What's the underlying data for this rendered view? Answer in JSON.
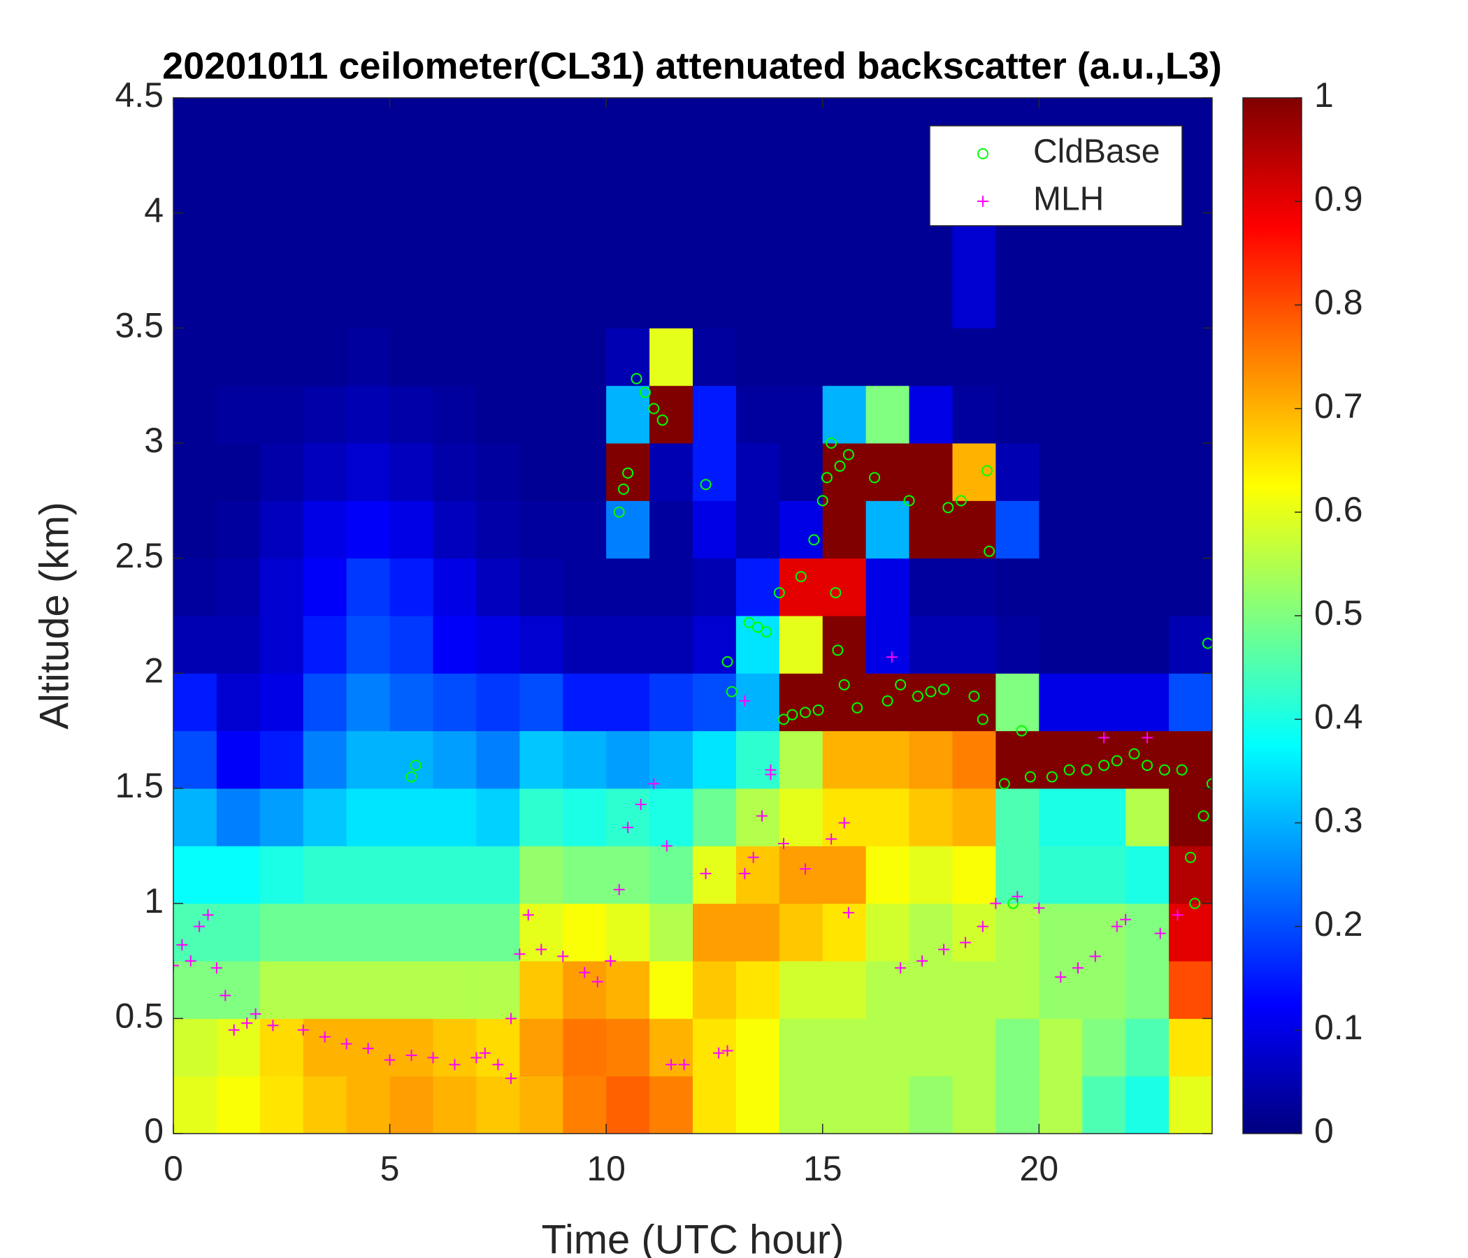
{
  "chart_data": {
    "type": "heatmap",
    "title": "20201011 ceilometer(CL31) attenuated backscatter (a.u.,L3)",
    "xlabel": "Time (UTC hour)",
    "ylabel": "Altitude (km)",
    "xlim": [
      0,
      24
    ],
    "ylim": [
      0,
      4.5
    ],
    "xticks": [
      0,
      5,
      10,
      15,
      20
    ],
    "yticks": [
      0,
      0.5,
      1,
      1.5,
      2,
      2.5,
      3,
      3.5,
      4,
      4.5
    ],
    "clim": [
      0,
      1
    ],
    "cticks": [
      0,
      0.1,
      0.2,
      0.3,
      0.4,
      0.5,
      0.6,
      0.7,
      0.8,
      0.9,
      1
    ],
    "colormap": "jet",
    "legend": "northeast",
    "x_bins": [
      0,
      1,
      2,
      3,
      4,
      5,
      6,
      7,
      8,
      9,
      10,
      11,
      12,
      13,
      14,
      15,
      16,
      17,
      18,
      19,
      20,
      21,
      22,
      23,
      24
    ],
    "y_bins": [
      0,
      0.25,
      0.5,
      0.75,
      1,
      1.25,
      1.5,
      1.75,
      2,
      2.25,
      2.5,
      2.75,
      3,
      3.25,
      3.5,
      3.75,
      4,
      4.25,
      4.5
    ],
    "z": [
      [
        0.6,
        0.62,
        0.65,
        0.68,
        0.7,
        0.72,
        0.7,
        0.68,
        0.7,
        0.75,
        0.78,
        0.75,
        0.65,
        0.62,
        0.55,
        0.55,
        0.55,
        0.52,
        0.55,
        0.5,
        0.55,
        0.45,
        0.4,
        0.6
      ],
      [
        0.58,
        0.6,
        0.66,
        0.7,
        0.7,
        0.7,
        0.68,
        0.66,
        0.72,
        0.76,
        0.75,
        0.7,
        0.65,
        0.62,
        0.55,
        0.55,
        0.55,
        0.55,
        0.55,
        0.5,
        0.55,
        0.5,
        0.45,
        0.65
      ],
      [
        0.5,
        0.5,
        0.55,
        0.55,
        0.55,
        0.55,
        0.55,
        0.55,
        0.68,
        0.72,
        0.7,
        0.62,
        0.68,
        0.65,
        0.58,
        0.58,
        0.55,
        0.55,
        0.55,
        0.55,
        0.52,
        0.52,
        0.5,
        0.8
      ],
      [
        0.45,
        0.45,
        0.48,
        0.48,
        0.48,
        0.48,
        0.48,
        0.48,
        0.6,
        0.62,
        0.6,
        0.55,
        0.72,
        0.72,
        0.68,
        0.65,
        0.58,
        0.55,
        0.58,
        0.55,
        0.52,
        0.52,
        0.5,
        0.9
      ],
      [
        0.38,
        0.38,
        0.4,
        0.42,
        0.42,
        0.42,
        0.42,
        0.42,
        0.52,
        0.5,
        0.5,
        0.48,
        0.6,
        0.68,
        0.72,
        0.72,
        0.62,
        0.6,
        0.62,
        0.45,
        0.42,
        0.42,
        0.4,
        0.95
      ],
      [
        0.3,
        0.25,
        0.28,
        0.32,
        0.35,
        0.35,
        0.35,
        0.33,
        0.42,
        0.4,
        0.42,
        0.4,
        0.48,
        0.55,
        0.6,
        0.65,
        0.65,
        0.68,
        0.7,
        0.45,
        0.4,
        0.4,
        0.55,
        1
      ],
      [
        0.2,
        0.12,
        0.15,
        0.25,
        0.3,
        0.3,
        0.28,
        0.25,
        0.32,
        0.3,
        0.28,
        0.3,
        0.35,
        0.42,
        0.55,
        0.7,
        0.7,
        0.72,
        0.75,
        1,
        1,
        1,
        1,
        1
      ],
      [
        0.15,
        0.08,
        0.1,
        0.2,
        0.25,
        0.22,
        0.2,
        0.18,
        0.2,
        0.15,
        0.15,
        0.18,
        0.2,
        0.3,
        1,
        1,
        1,
        1,
        1,
        0.5,
        0.1,
        0.1,
        0.1,
        0.2
      ],
      [
        0.05,
        0.05,
        0.08,
        0.15,
        0.2,
        0.18,
        0.12,
        0.1,
        0.08,
        0.05,
        0.05,
        0.05,
        0.08,
        0.35,
        0.6,
        1,
        0.1,
        0.05,
        0.05,
        0.03,
        0.02,
        0.02,
        0.02,
        0.05
      ],
      [
        0.03,
        0.04,
        0.08,
        0.12,
        0.18,
        0.15,
        0.1,
        0.06,
        0.04,
        0.03,
        0.03,
        0.03,
        0.05,
        0.15,
        0.9,
        0.9,
        0.1,
        0.03,
        0.03,
        0.02,
        0.02,
        0.02,
        0.02,
        0.02
      ],
      [
        0.02,
        0.03,
        0.06,
        0.1,
        0.12,
        0.1,
        0.06,
        0.04,
        0.03,
        0.03,
        0.25,
        0.03,
        0.1,
        0.05,
        0.1,
        1,
        0.3,
        1,
        1,
        0.2,
        0.02,
        0.02,
        0.02,
        0.02
      ],
      [
        0.02,
        0.02,
        0.04,
        0.06,
        0.08,
        0.06,
        0.04,
        0.03,
        0.02,
        0.02,
        1,
        0.05,
        0.15,
        0.05,
        0.03,
        1,
        1,
        1,
        0.7,
        0.05,
        0.02,
        0.02,
        0.02,
        0.02
      ],
      [
        0.02,
        0.03,
        0.03,
        0.04,
        0.05,
        0.04,
        0.03,
        0.02,
        0.02,
        0.02,
        0.3,
        1,
        0.15,
        0.03,
        0.03,
        0.3,
        0.5,
        0.1,
        0.03,
        0.02,
        0.02,
        0.02,
        0.02,
        0.02
      ],
      [
        0.02,
        0.02,
        0.02,
        0.02,
        0.03,
        0.02,
        0.02,
        0.02,
        0.02,
        0.02,
        0.05,
        0.6,
        0.03,
        0.02,
        0.02,
        0.02,
        0.02,
        0.02,
        0.02,
        0.02,
        0.02,
        0.02,
        0.02,
        0.02
      ],
      [
        0.02,
        0.02,
        0.02,
        0.02,
        0.02,
        0.02,
        0.02,
        0.02,
        0.02,
        0.02,
        0.02,
        0.02,
        0.02,
        0.02,
        0.02,
        0.02,
        0.02,
        0.02,
        0.08,
        0.02,
        0.02,
        0.02,
        0.02,
        0.02
      ],
      [
        0.02,
        0.02,
        0.02,
        0.02,
        0.02,
        0.02,
        0.02,
        0.02,
        0.02,
        0.02,
        0.02,
        0.02,
        0.02,
        0.02,
        0.02,
        0.02,
        0.02,
        0.02,
        0.08,
        0.02,
        0.02,
        0.02,
        0.02,
        0.02
      ],
      [
        0.02,
        0.02,
        0.02,
        0.02,
        0.02,
        0.02,
        0.02,
        0.02,
        0.02,
        0.02,
        0.02,
        0.02,
        0.02,
        0.02,
        0.02,
        0.02,
        0.02,
        0.02,
        0.02,
        0.02,
        0.02,
        0.02,
        0.02,
        0.02
      ],
      [
        0.02,
        0.02,
        0.02,
        0.02,
        0.02,
        0.02,
        0.02,
        0.02,
        0.02,
        0.02,
        0.02,
        0.02,
        0.02,
        0.02,
        0.02,
        0.02,
        0.02,
        0.02,
        0.02,
        0.02,
        0.02,
        0.02,
        0.02,
        0.02
      ]
    ],
    "series": [
      {
        "name": "CldBase",
        "marker": "circle",
        "color": "#00ff00",
        "x": [
          5.5,
          5.6,
          10.3,
          10.4,
          10.5,
          10.7,
          10.9,
          11.1,
          11.3,
          12.3,
          12.8,
          12.9,
          13.3,
          13.5,
          13.7,
          14,
          14.1,
          14.3,
          14.5,
          14.6,
          14.8,
          14.9,
          15,
          15.1,
          15.2,
          15.3,
          15.35,
          15.4,
          15.5,
          15.6,
          15.8,
          16.2,
          16.5,
          16.8,
          17,
          17.2,
          17.5,
          17.8,
          17.9,
          18.2,
          18.5,
          18.7,
          18.8,
          18.85,
          19.2,
          19.4,
          19.6,
          19.8,
          20.3,
          20.7,
          21.1,
          21.5,
          21.8,
          22.2,
          22.5,
          22.9,
          23.3,
          23.5,
          23.6,
          23.8,
          23.9,
          24
        ],
        "y": [
          1.55,
          1.6,
          2.7,
          2.8,
          2.87,
          3.28,
          3.22,
          3.15,
          3.1,
          2.82,
          2.05,
          1.92,
          2.22,
          2.2,
          2.18,
          2.35,
          1.8,
          1.82,
          2.42,
          1.83,
          2.58,
          1.84,
          2.75,
          2.85,
          3,
          2.35,
          2.1,
          2.9,
          1.95,
          2.95,
          1.85,
          2.85,
          1.88,
          1.95,
          2.75,
          1.9,
          1.92,
          1.93,
          2.72,
          2.75,
          1.9,
          1.8,
          2.88,
          2.53,
          1.52,
          1,
          1.75,
          1.55,
          1.55,
          1.58,
          1.58,
          1.6,
          1.62,
          1.65,
          1.6,
          1.58,
          1.58,
          1.2,
          1,
          1.38,
          2.13,
          1.52
        ]
      },
      {
        "name": "MLH",
        "marker": "plus",
        "color": "#ff00ff",
        "x": [
          0,
          0.2,
          0.4,
          0.6,
          0.8,
          1,
          1.2,
          1.4,
          1.7,
          1.9,
          2.3,
          3,
          3.5,
          4,
          4.5,
          5,
          5.5,
          6,
          6.5,
          7,
          7.2,
          7.5,
          7.8,
          7.8,
          8,
          8.2,
          8.5,
          9,
          9.5,
          9.8,
          10.1,
          10.3,
          10.5,
          10.8,
          11.1,
          11.4,
          11.5,
          11.8,
          12.3,
          12.6,
          12.8,
          13.2,
          13.4,
          13.6,
          13.8,
          14.1,
          14.6,
          15.2,
          15.5,
          15.6,
          16.8,
          17.3,
          17.8,
          18.3,
          18.7,
          19,
          19.5,
          20,
          20.5,
          20.9,
          21.3,
          21.8,
          22,
          22.8,
          23.2,
          22.5,
          21.5,
          16.6,
          13.2,
          13.8
        ],
        "y": [
          0.73,
          0.82,
          0.75,
          0.9,
          0.95,
          0.72,
          0.6,
          0.45,
          0.48,
          0.52,
          0.47,
          0.45,
          0.42,
          0.39,
          0.37,
          0.32,
          0.34,
          0.33,
          0.3,
          0.33,
          0.35,
          0.3,
          0.24,
          0.5,
          0.78,
          0.95,
          0.8,
          0.77,
          0.7,
          0.66,
          0.75,
          1.06,
          1.33,
          1.43,
          1.52,
          1.25,
          0.3,
          0.3,
          1.13,
          0.35,
          0.36,
          1.13,
          1.2,
          1.38,
          1.56,
          1.26,
          1.15,
          1.28,
          1.35,
          0.96,
          0.72,
          0.75,
          0.8,
          0.83,
          0.9,
          1,
          1.03,
          0.98,
          0.68,
          0.72,
          0.77,
          0.9,
          0.93,
          0.87,
          0.95,
          1.72,
          1.72,
          2.07,
          1.88,
          1.58
        ]
      }
    ]
  }
}
